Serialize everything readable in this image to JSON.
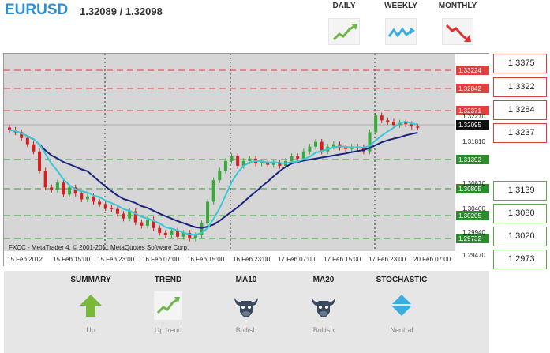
{
  "header": {
    "symbol": "EURUSD",
    "price": "1.32089 / 1.32098",
    "timeframes": [
      {
        "label": "DAILY",
        "trend": "up",
        "color": "#6ab845"
      },
      {
        "label": "WEEKLY",
        "trend": "zigzag",
        "color": "#3aaee0"
      },
      {
        "label": "MONTHLY",
        "trend": "down",
        "color": "#e03030"
      }
    ]
  },
  "chart": {
    "watermark": "FXCC - MetaTrader 4, © 2001-2011 MetaQuotes Software Corp.",
    "x_labels": [
      "15 Feb 2012",
      "15 Feb 15:00",
      "15 Feb 23:00",
      "16 Feb 07:00",
      "16 Feb 15:00",
      "16 Feb 23:00",
      "17 Feb 07:00",
      "17 Feb 15:00",
      "17 Feb 23:00",
      "20 Feb 07:00"
    ],
    "y_labels": [
      "1.32270",
      "1.31810",
      "1.30870",
      "1.30400",
      "1.29940",
      "1.29470"
    ],
    "red_levels": [
      "1.33224",
      "1.32842",
      "1.32371"
    ],
    "green_levels": [
      "1.31392",
      "1.30805",
      "1.30205",
      "1.29732"
    ],
    "current": "1.32095"
  },
  "levels": {
    "resistance": [
      "1.3375",
      "1.3322",
      "1.3284",
      "1.3237"
    ],
    "support": [
      "1.3139",
      "1.3080",
      "1.3020",
      "1.2973"
    ]
  },
  "colors": {
    "accent": "#2b8fd6",
    "resistance": "#e04040",
    "support": "#3a9a3a",
    "ma_fast": "#38c8d8",
    "ma_slow": "#1a237e"
  },
  "indicators": [
    {
      "title": "SUMMARY",
      "icon": "up-arrow-icon",
      "value": "Up"
    },
    {
      "title": "TREND",
      "icon": "trend-up-icon",
      "value": "Up trend"
    },
    {
      "title": "MA10",
      "icon": "bull-icon",
      "value": "Bullish"
    },
    {
      "title": "MA20",
      "icon": "bull-icon",
      "value": "Bullish"
    },
    {
      "title": "STOCHASTIC",
      "icon": "diamond-icon",
      "value": "Neutral"
    }
  ]
}
